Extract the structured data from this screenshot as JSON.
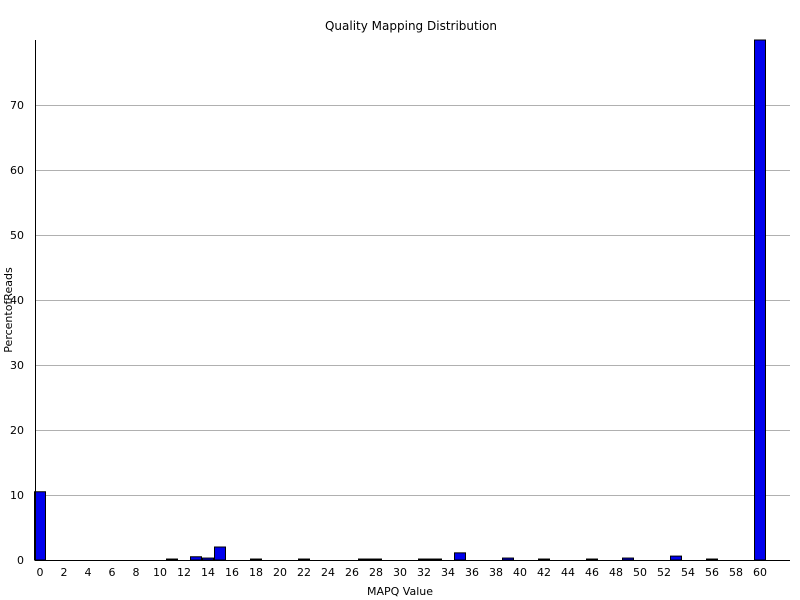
{
  "chart_data": {
    "type": "bar",
    "title": "Quality Mapping Distribution",
    "xlabel": "MAPQ Value",
    "ylabel": "PercentofReads",
    "xlim": [
      0,
      62
    ],
    "ylim": [
      0,
      80
    ],
    "xticks": [
      0,
      2,
      4,
      6,
      8,
      10,
      12,
      14,
      16,
      18,
      20,
      22,
      24,
      26,
      28,
      30,
      32,
      34,
      36,
      38,
      40,
      42,
      44,
      46,
      48,
      50,
      52,
      54,
      56,
      58,
      60
    ],
    "yticks": [
      0,
      10,
      20,
      30,
      40,
      50,
      60,
      70
    ],
    "grid": true,
    "bar_color": "#0000ee",
    "bars": [
      {
        "x": 0,
        "value": 10.5
      },
      {
        "x": 11,
        "value": 0.15
      },
      {
        "x": 13,
        "value": 0.5
      },
      {
        "x": 14,
        "value": 0.3
      },
      {
        "x": 15,
        "value": 2.0
      },
      {
        "x": 18,
        "value": 0.15
      },
      {
        "x": 22,
        "value": 0.15
      },
      {
        "x": 27,
        "value": 0.15
      },
      {
        "x": 28,
        "value": 0.15
      },
      {
        "x": 32,
        "value": 0.15
      },
      {
        "x": 33,
        "value": 0.15
      },
      {
        "x": 35,
        "value": 1.1
      },
      {
        "x": 39,
        "value": 0.3
      },
      {
        "x": 42,
        "value": 0.15
      },
      {
        "x": 46,
        "value": 0.15
      },
      {
        "x": 49,
        "value": 0.3
      },
      {
        "x": 53,
        "value": 0.6
      },
      {
        "x": 56,
        "value": 0.15
      },
      {
        "x": 60,
        "value": 80
      }
    ]
  }
}
